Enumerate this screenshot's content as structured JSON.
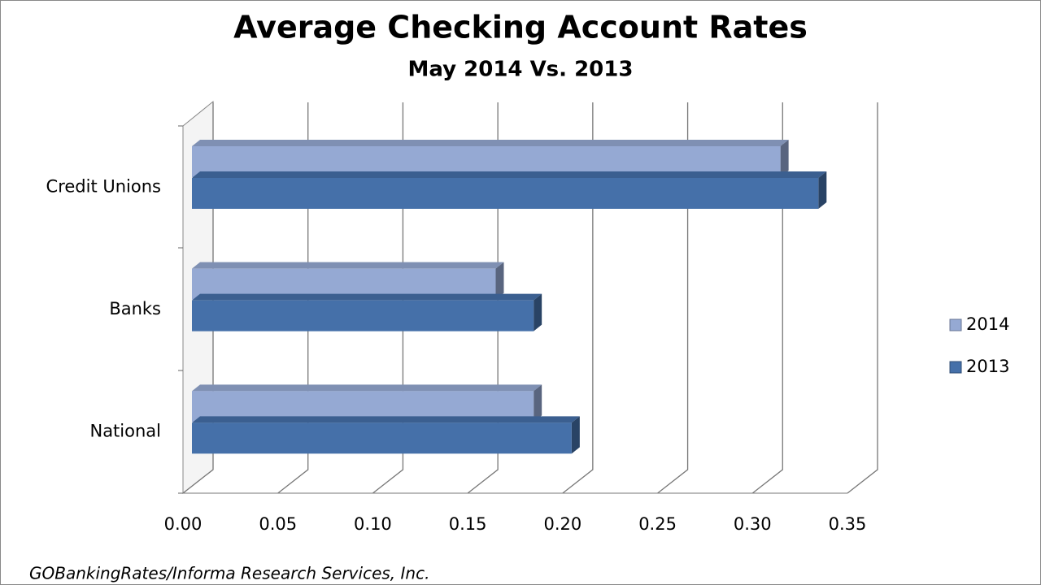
{
  "chart_data": {
    "type": "bar3d_horizontal",
    "title": "Average Checking Account Rates",
    "subtitle": "May 2014 Vs. 2013",
    "source": "GOBankingRates/Informa Research Services, Inc.",
    "categories": [
      "Credit Unions",
      "Banks",
      "National"
    ],
    "series": [
      {
        "name": "2014",
        "color": "#95a9d3",
        "values": [
          0.31,
          0.16,
          0.18
        ]
      },
      {
        "name": "2013",
        "color": "#4570a9",
        "values": [
          0.33,
          0.18,
          0.2
        ]
      }
    ],
    "xlim": [
      0,
      0.35
    ],
    "xticks": [
      {
        "value": 0,
        "label": "0.00"
      },
      {
        "value": 0.05,
        "label": "0.05"
      },
      {
        "value": 0.1,
        "label": "0.10"
      },
      {
        "value": 0.15,
        "label": "0.15"
      },
      {
        "value": 0.2,
        "label": "0.20"
      },
      {
        "value": 0.25,
        "label": "0.25"
      },
      {
        "value": 0.3,
        "label": "0.30"
      },
      {
        "value": 0.35,
        "label": "0.35"
      }
    ],
    "grid": true,
    "legend": "right"
  }
}
